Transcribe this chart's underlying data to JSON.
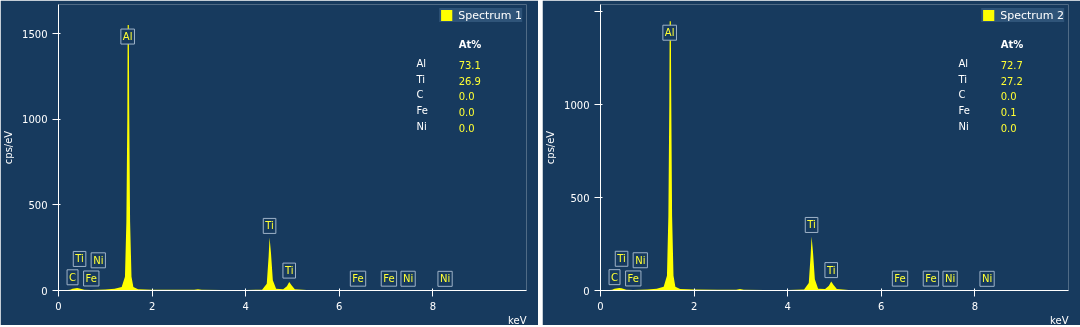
{
  "chart_data": [
    {
      "type": "area",
      "ylabel": "cps/eV",
      "xlabel": "keV",
      "xlim": [
        0,
        10
      ],
      "ylim": [
        0,
        1670
      ],
      "xticks": [
        0,
        2,
        4,
        6,
        8
      ],
      "yticks": [
        0,
        500,
        1000,
        1500
      ],
      "legend": "top right",
      "grid": false,
      "x": [
        0,
        0.15,
        0.25,
        0.3,
        0.4,
        0.45,
        0.55,
        0.7,
        0.85,
        1.0,
        1.2,
        1.35,
        1.42,
        1.45,
        1.47,
        1.478,
        1.485,
        1.495,
        1.503,
        1.51,
        1.53,
        1.56,
        1.6,
        1.7,
        2.0,
        2.5,
        2.9,
        2.98,
        3.06,
        3.5,
        4.0,
        4.35,
        4.45,
        4.49,
        4.51,
        4.54,
        4.58,
        4.65,
        4.8,
        4.88,
        4.93,
        4.98,
        5.05,
        5.3,
        6,
        7,
        8,
        10
      ],
      "series": [
        {
          "name": "Spectrum 1",
          "color": "#ffff00",
          "values": [
            0,
            1,
            4,
            10,
            14,
            12,
            4,
            3,
            4,
            6,
            10,
            20,
            80,
            400,
            1000,
            1550,
            null,
            null,
            1550,
            1100,
            400,
            80,
            20,
            8,
            5,
            4,
            4,
            8,
            4,
            3,
            3,
            5,
            40,
            200,
            310,
            220,
            60,
            10,
            8,
            25,
            49,
            30,
            8,
            3,
            2,
            2,
            1,
            0
          ]
        }
      ],
      "annotations": [
        "At%",
        "Al",
        "73.1",
        "Ti",
        "26.9",
        "C",
        "0.0",
        "Fe",
        "0.0",
        "Ni",
        "0.0",
        {
          "text": "C",
          "x": 0.3,
          "y": 10
        },
        {
          "text": "Ti",
          "x": 0.45,
          "y": 12
        },
        {
          "text": "Fe",
          "x": 0.7,
          "y": 3
        },
        {
          "text": "Ni",
          "x": 0.85,
          "y": 4
        },
        {
          "text": "Al",
          "x": 1.478,
          "y": 1550
        },
        {
          "text": "Ti",
          "x": 4.51,
          "y": 310
        },
        {
          "text": "Ti",
          "x": 4.93,
          "y": 49
        },
        {
          "text": "Fe",
          "x": 6.4,
          "y": 2
        },
        {
          "text": "Fe",
          "x": 7.06,
          "y": 2
        },
        {
          "text": "Ni",
          "x": 7.47,
          "y": 1.5
        },
        {
          "text": "Ni",
          "x": 8.26,
          "y": 1
        }
      ]
    },
    {
      "type": "area",
      "ylabel": "cps/eV",
      "xlabel": "keV",
      "xlim": [
        0,
        10
      ],
      "ylim": [
        0,
        1540
      ],
      "xticks": [
        0,
        2,
        4,
        6,
        8
      ],
      "yticks": [
        0,
        500,
        1000,
        {
          "value": 1500,
          "label": null
        }
      ],
      "legend": "top right",
      "grid": false,
      "x": [
        0,
        0.15,
        0.25,
        0.3,
        0.4,
        0.45,
        0.55,
        0.7,
        0.85,
        1.0,
        1.2,
        1.35,
        1.42,
        1.45,
        1.47,
        1.478,
        1.485,
        1.495,
        1.503,
        1.51,
        1.53,
        1.56,
        1.6,
        1.7,
        2.0,
        2.5,
        2.9,
        2.98,
        3.06,
        3.5,
        4.0,
        4.35,
        4.45,
        4.49,
        4.51,
        4.54,
        4.58,
        4.65,
        4.8,
        4.88,
        4.93,
        4.98,
        5.05,
        5.3,
        6,
        7,
        8,
        10
      ],
      "series": [
        {
          "name": "Spectrum 2",
          "color": "#ffff00",
          "values": [
            0,
            1,
            4,
            10,
            14,
            12,
            4,
            3,
            4,
            6,
            10,
            20,
            80,
            400,
            1000,
            1450,
            null,
            null,
            1450,
            1100,
            400,
            80,
            20,
            8,
            5,
            4,
            4,
            8,
            4,
            3,
            3,
            5,
            40,
            190,
            291,
            210,
            60,
            10,
            8,
            25,
            48,
            30,
            8,
            3,
            2,
            2,
            1,
            0
          ]
        }
      ],
      "annotations": [
        "At%",
        "Al",
        "72.7",
        "Ti",
        "27.2",
        "C",
        "0.0",
        "Fe",
        "0.1",
        "Ni",
        "0.0",
        {
          "text": "C",
          "x": 0.3,
          "y": 10
        },
        {
          "text": "Ti",
          "x": 0.45,
          "y": 12
        },
        {
          "text": "Fe",
          "x": 0.7,
          "y": 3
        },
        {
          "text": "Ni",
          "x": 0.85,
          "y": 4
        },
        {
          "text": "Al",
          "x": 1.478,
          "y": 1450
        },
        {
          "text": "Ti",
          "x": 4.51,
          "y": 291
        },
        {
          "text": "Ti",
          "x": 4.93,
          "y": 48
        },
        {
          "text": "Fe",
          "x": 6.4,
          "y": 2
        },
        {
          "text": "Fe",
          "x": 7.06,
          "y": 2
        },
        {
          "text": "Ni",
          "x": 7.47,
          "y": 1.5
        },
        {
          "text": "Ni",
          "x": 8.26,
          "y": 1
        }
      ]
    }
  ]
}
